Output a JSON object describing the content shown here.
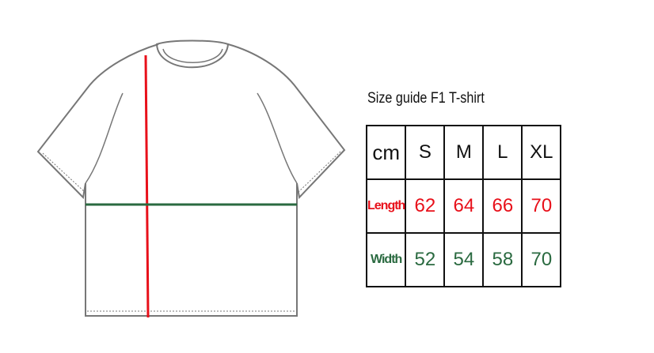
{
  "title": "Size guide F1 T-shirt",
  "table": {
    "header": [
      "cm",
      "S",
      "M",
      "L",
      "XL"
    ],
    "rows": [
      {
        "label": "Length",
        "values": [
          "62",
          "64",
          "66",
          "70"
        ]
      },
      {
        "label": "Width",
        "values": [
          "52",
          "54",
          "58",
          "70"
        ]
      }
    ]
  },
  "colors": {
    "length": "#e8101a",
    "width": "#2a6a40",
    "outline": "#777777"
  }
}
